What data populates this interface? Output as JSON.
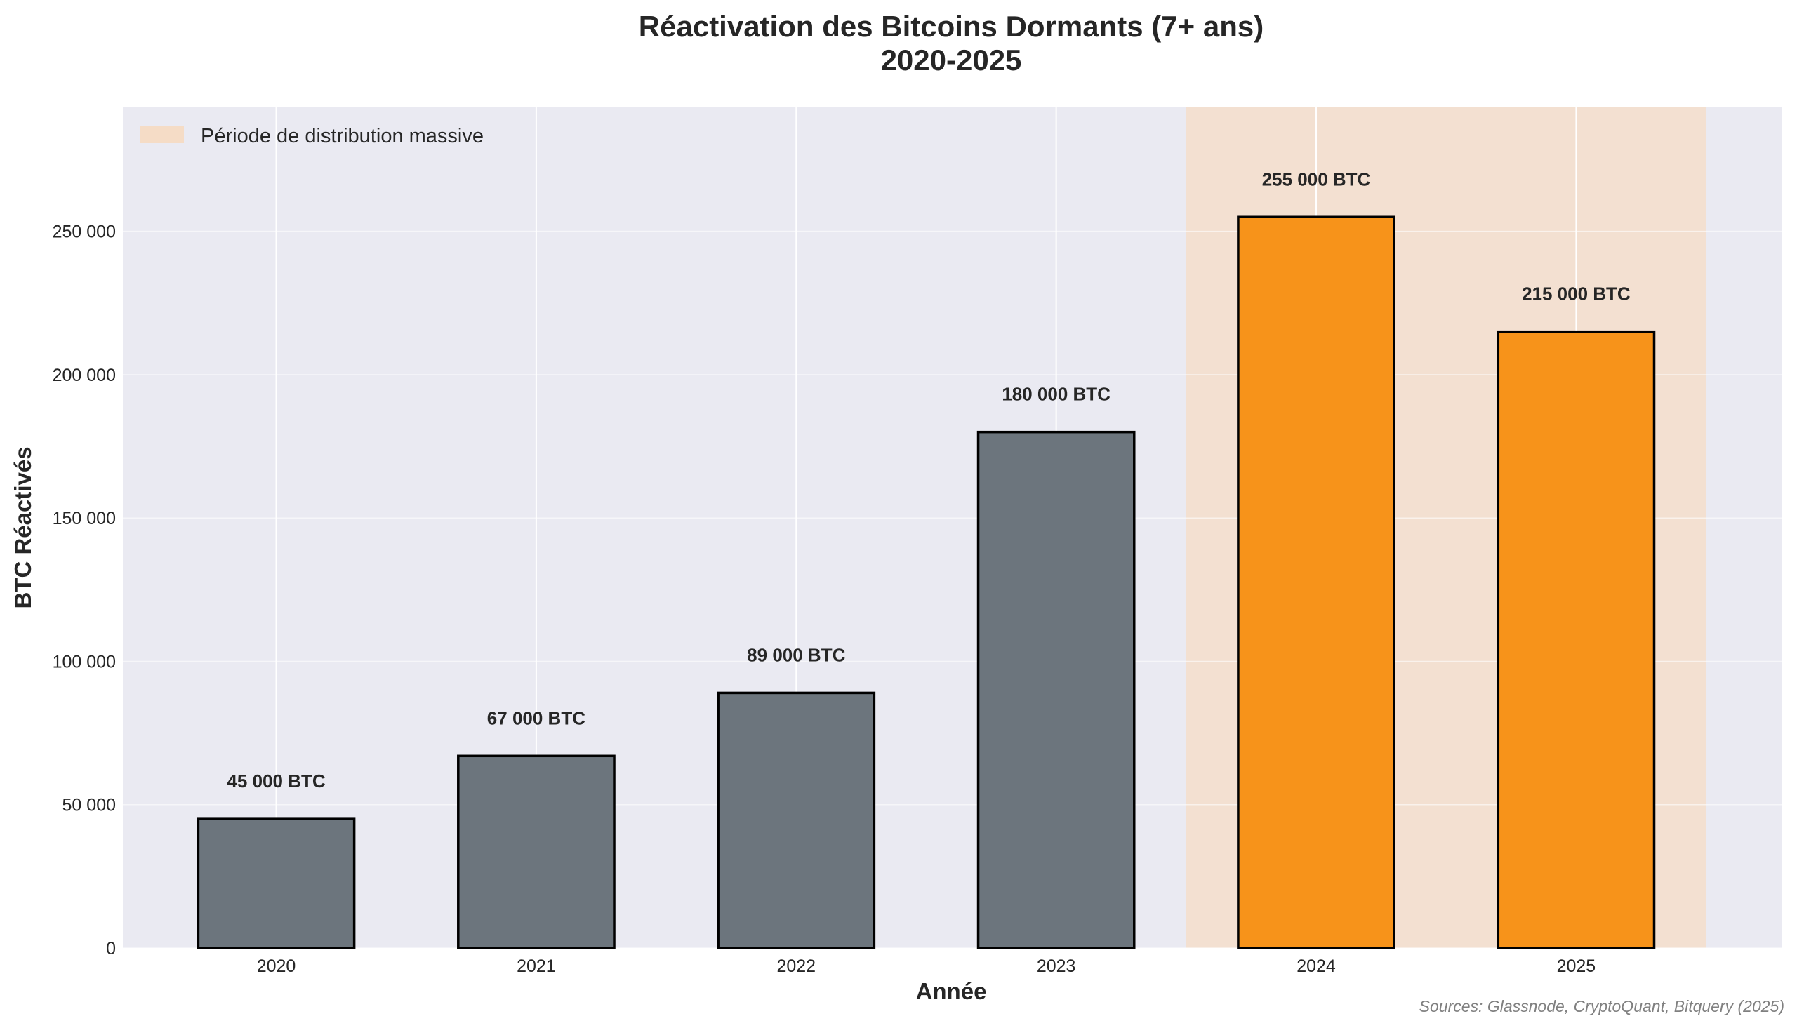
{
  "chart_data": {
    "type": "bar",
    "title": [
      "Réactivation des Bitcoins Dormants (7+ ans)",
      "2020-2025"
    ],
    "xlabel": "Année",
    "ylabel": "BTC Réactivés",
    "categories": [
      "2020",
      "2021",
      "2022",
      "2023",
      "2024",
      "2025"
    ],
    "values": [
      45000,
      67000,
      89000,
      180000,
      255000,
      215000
    ],
    "data_labels": [
      "45 000 BTC",
      "67 000 BTC",
      "89 000 BTC",
      "180 000 BTC",
      "255 000 BTC",
      "215 000 BTC"
    ],
    "bar_colors": [
      "#6c757d",
      "#6c757d",
      "#6c757d",
      "#6c757d",
      "#f7931a",
      "#f7931a"
    ],
    "bar_edge_color": "#000000",
    "ylim": [
      0,
      293250
    ],
    "yticks": [
      0,
      50000,
      100000,
      150000,
      200000,
      250000
    ],
    "ytick_labels": [
      "0",
      "50 000",
      "100 000",
      "150 000",
      "200 000",
      "250 000"
    ],
    "grid": true,
    "background_color": "#eaeaf2",
    "highlight_span": {
      "from_category": "2024",
      "to_category": "2025",
      "color": "#f5dcc6",
      "label": "Période de distribution massive"
    },
    "legend": {
      "placement": "top-left",
      "entries": [
        "Période de distribution massive"
      ]
    },
    "annotation": "Sources: Glassnode, CryptoQuant, Bitquery (2025)"
  }
}
